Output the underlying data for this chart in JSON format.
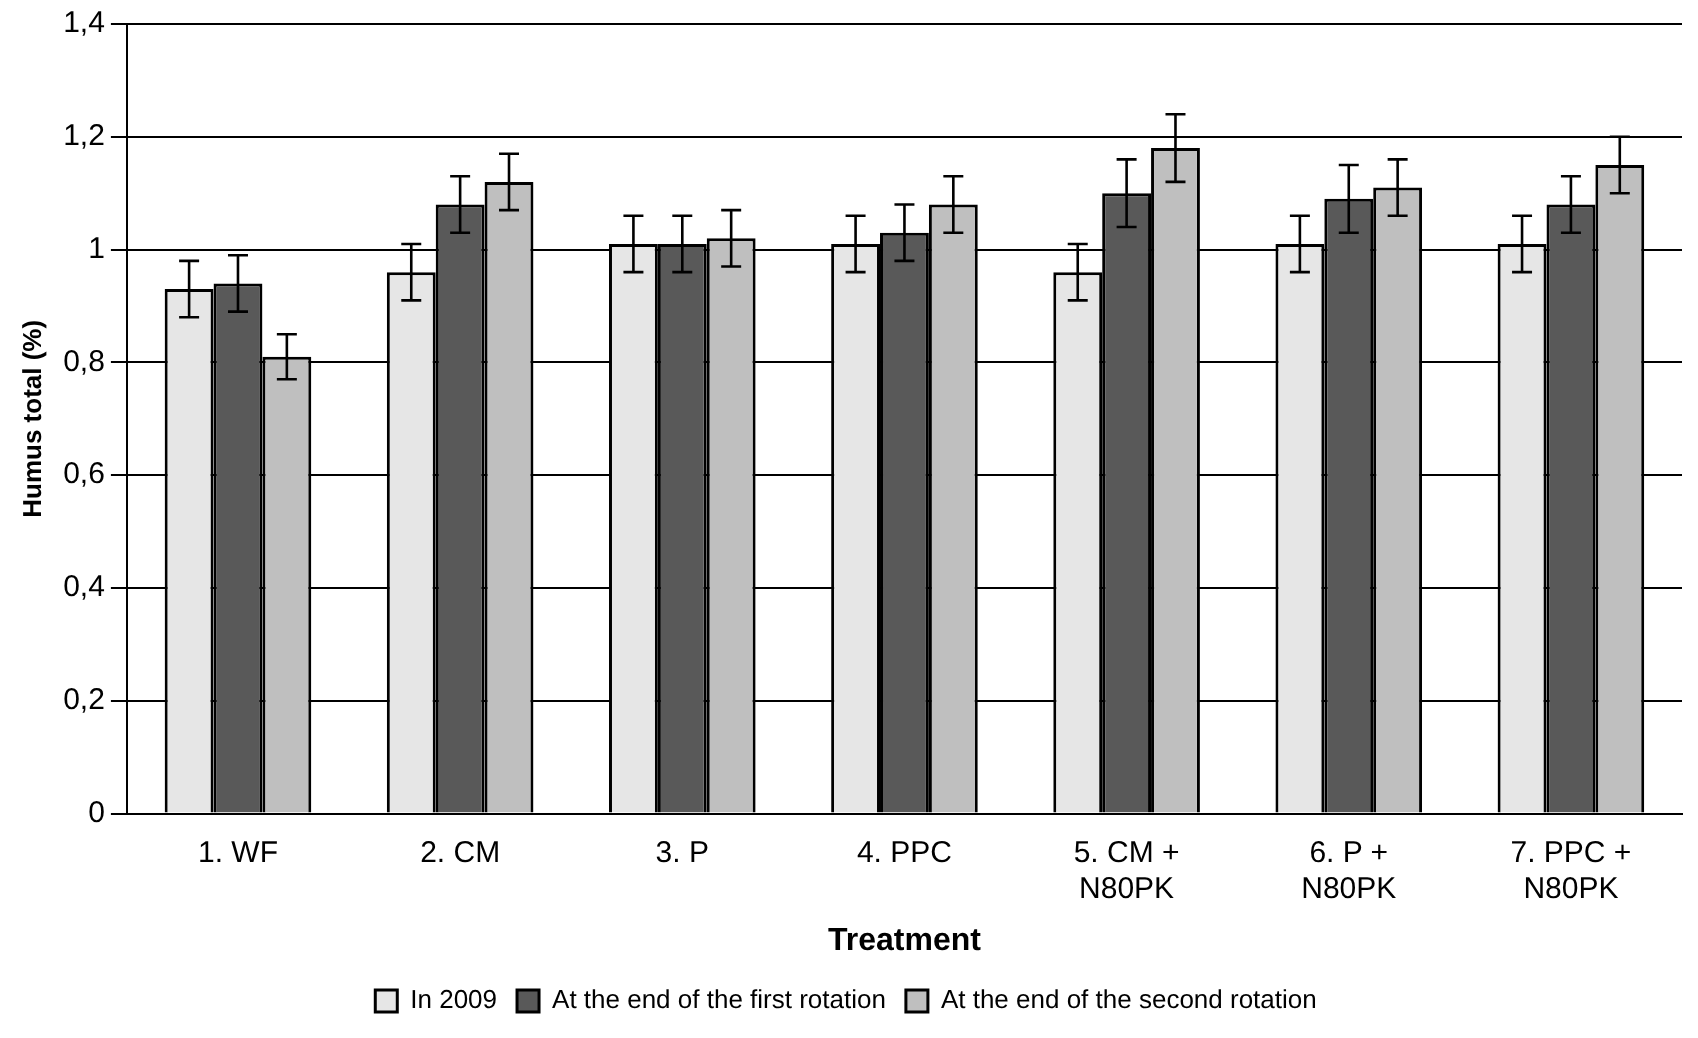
{
  "chart_data": {
    "type": "bar",
    "xlabel": "Treatment",
    "ylabel": "Humus total (%)",
    "categories": [
      "1. WF",
      "2. CM",
      "3. P",
      "4. PPC",
      "5. CM + N80PK",
      "6. P + N80PK",
      "7. PPC + N80PK"
    ],
    "series": [
      {
        "name": "In 2009",
        "color": "#e6e6e6",
        "values": [
          0.93,
          0.96,
          1.01,
          1.01,
          0.96,
          1.01,
          1.01
        ],
        "errors": [
          0.05,
          0.05,
          0.05,
          0.05,
          0.05,
          0.05,
          0.05
        ]
      },
      {
        "name": "At the end of the first rotation",
        "color": "#595959",
        "values": [
          0.94,
          1.08,
          1.01,
          1.03,
          1.1,
          1.09,
          1.08
        ],
        "errors": [
          0.05,
          0.05,
          0.05,
          0.05,
          0.06,
          0.06,
          0.05
        ]
      },
      {
        "name": "At the end of the second rotation",
        "color": "#bfbfbf",
        "values": [
          0.81,
          1.12,
          1.02,
          1.08,
          1.18,
          1.11,
          1.15
        ],
        "errors": [
          0.04,
          0.05,
          0.05,
          0.05,
          0.06,
          0.05,
          0.05
        ]
      }
    ],
    "ylim": [
      0,
      1.4
    ],
    "yticks": [
      0,
      {
        "value": 0.2,
        "label": "0,2"
      },
      {
        "value": 0.4,
        "label": "0,4"
      },
      {
        "value": 0.6,
        "label": "0,6"
      },
      {
        "value": 0.8,
        "label": "0,8"
      },
      1,
      {
        "value": 1.2,
        "label": "1,2"
      },
      {
        "value": 1.4,
        "label": "1,4"
      }
    ],
    "grid": "y",
    "legend": "bottom"
  }
}
